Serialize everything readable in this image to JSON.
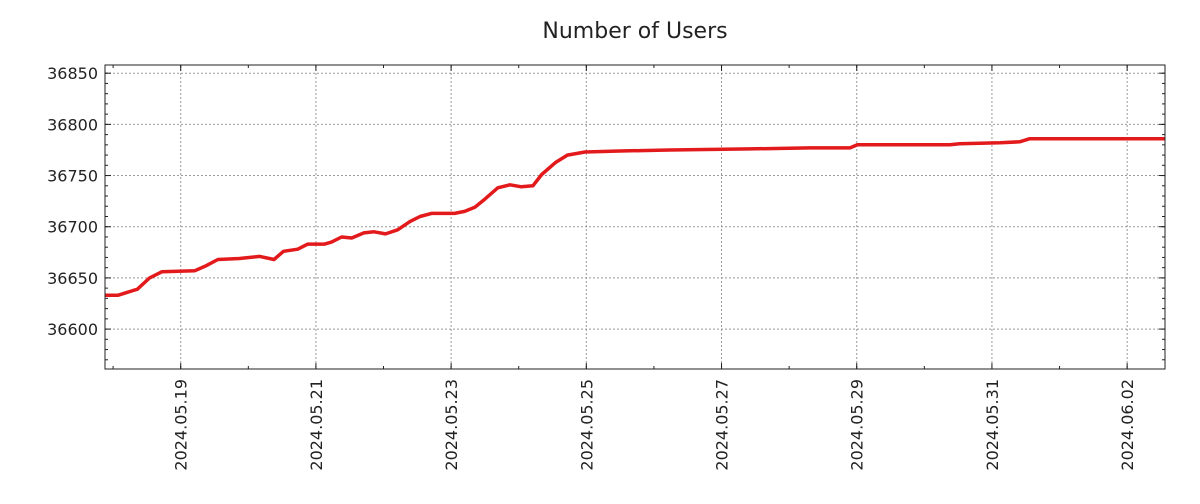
{
  "chart_data": {
    "type": "line",
    "title": "Number of Users",
    "xlabel": "",
    "ylabel": "",
    "x_unit": "days since 2024-05-18",
    "xlim": [
      -0.12,
      15.56
    ],
    "ylim": [
      36561,
      36858
    ],
    "grid": true,
    "x_ticks": [
      {
        "value": 1,
        "label": "2024.05.19"
      },
      {
        "value": 3,
        "label": "2024.05.21"
      },
      {
        "value": 5,
        "label": "2024.05.23"
      },
      {
        "value": 7,
        "label": "2024.05.25"
      },
      {
        "value": 9,
        "label": "2024.05.27"
      },
      {
        "value": 11,
        "label": "2024.05.29"
      },
      {
        "value": 13,
        "label": "2024.05.31"
      },
      {
        "value": 15,
        "label": "2024.06.02"
      }
    ],
    "y_ticks": [
      {
        "value": 36600,
        "label": "36600"
      },
      {
        "value": 36650,
        "label": "36650"
      },
      {
        "value": 36700,
        "label": "36700"
      },
      {
        "value": 36750,
        "label": "36750"
      },
      {
        "value": 36800,
        "label": "36800"
      },
      {
        "value": 36850,
        "label": "36850"
      }
    ],
    "series": [
      {
        "name": "Number of Users",
        "color": "#e31a1c",
        "x": [
          -0.12,
          0.07,
          0.36,
          0.54,
          0.72,
          1.21,
          1.38,
          1.55,
          1.87,
          2.17,
          2.38,
          2.52,
          2.73,
          2.88,
          3.13,
          3.23,
          3.38,
          3.53,
          3.71,
          3.86,
          4.03,
          4.21,
          4.39,
          4.54,
          4.71,
          5.05,
          5.2,
          5.35,
          5.5,
          5.69,
          5.87,
          6.04,
          6.21,
          6.34,
          6.55,
          6.72,
          6.98,
          7.49,
          8.23,
          9.42,
          10.3,
          10.9,
          11.01,
          12.38,
          12.52,
          13.12,
          13.41,
          13.56,
          15.56
        ],
        "y": [
          36633,
          36633,
          36639,
          36650,
          36656,
          36657,
          36662,
          36668,
          36669,
          36671,
          36668,
          36676,
          36678,
          36683,
          36683,
          36685,
          36690,
          36689,
          36694,
          36695,
          36693,
          36697,
          36705,
          36710,
          36713,
          36713,
          36715,
          36719,
          36727,
          36738,
          36741,
          36739,
          36740,
          36751,
          36763,
          36770,
          36773,
          36774,
          36775,
          36776,
          36777,
          36777,
          36780,
          36780,
          36781,
          36782,
          36783,
          36786,
          36786
        ]
      }
    ]
  }
}
